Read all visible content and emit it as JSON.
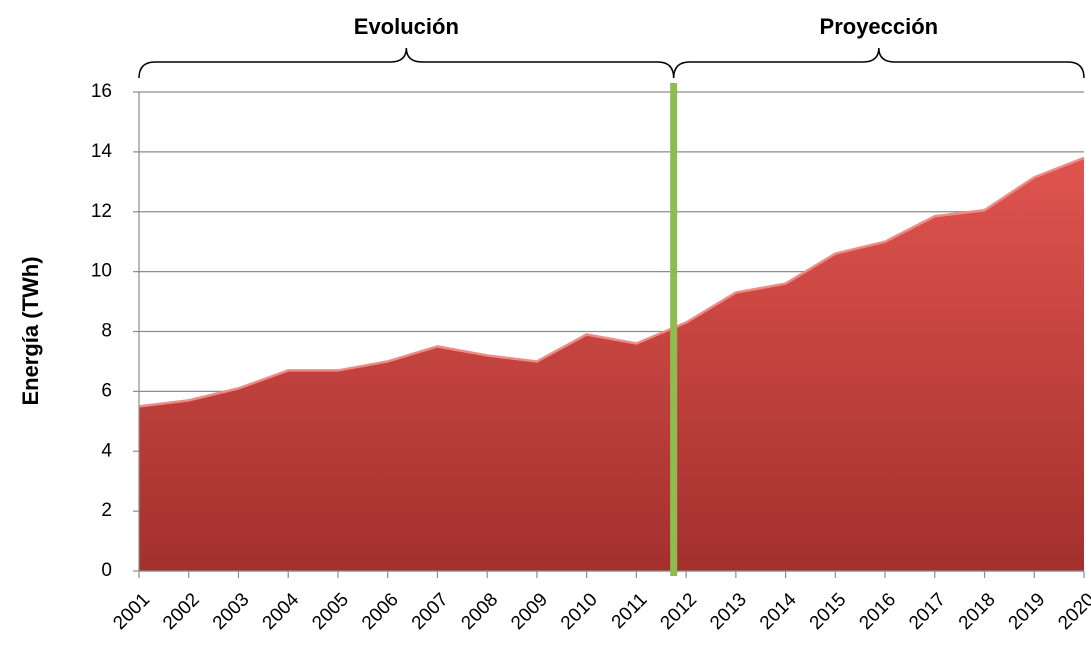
{
  "chart_data": {
    "type": "area",
    "y_label": "Energía (TWh)",
    "x": [
      2001,
      2002,
      2003,
      2004,
      2005,
      2006,
      2007,
      2008,
      2009,
      2010,
      2011,
      2012,
      2013,
      2014,
      2015,
      2016,
      2017,
      2018,
      2019,
      2020
    ],
    "values": [
      5.5,
      5.7,
      6.1,
      6.7,
      6.7,
      7.0,
      7.5,
      7.2,
      7.0,
      7.9,
      7.6,
      8.3,
      9.3,
      9.6,
      10.6,
      11.0,
      11.85,
      12.05,
      13.15,
      13.8
    ],
    "color": "#c63c38",
    "xlim": [
      2001,
      2020
    ],
    "xticks": [
      2001,
      2002,
      2003,
      2004,
      2005,
      2006,
      2007,
      2008,
      2009,
      2010,
      2011,
      2012,
      2013,
      2014,
      2015,
      2016,
      2017,
      2018,
      2019,
      2020
    ],
    "ylim": [
      0,
      16
    ],
    "yticks": [
      0,
      2,
      4,
      6,
      8,
      10,
      12,
      14,
      16
    ],
    "grid": true,
    "divider": {
      "x": 2011.75,
      "color": "#8fbc4f"
    },
    "annotations": [
      {
        "text": "Evolución",
        "x": [
          2001,
          2011.75
        ]
      },
      {
        "text": "Proyección",
        "x": [
          2011.75,
          2020
        ]
      }
    ]
  }
}
